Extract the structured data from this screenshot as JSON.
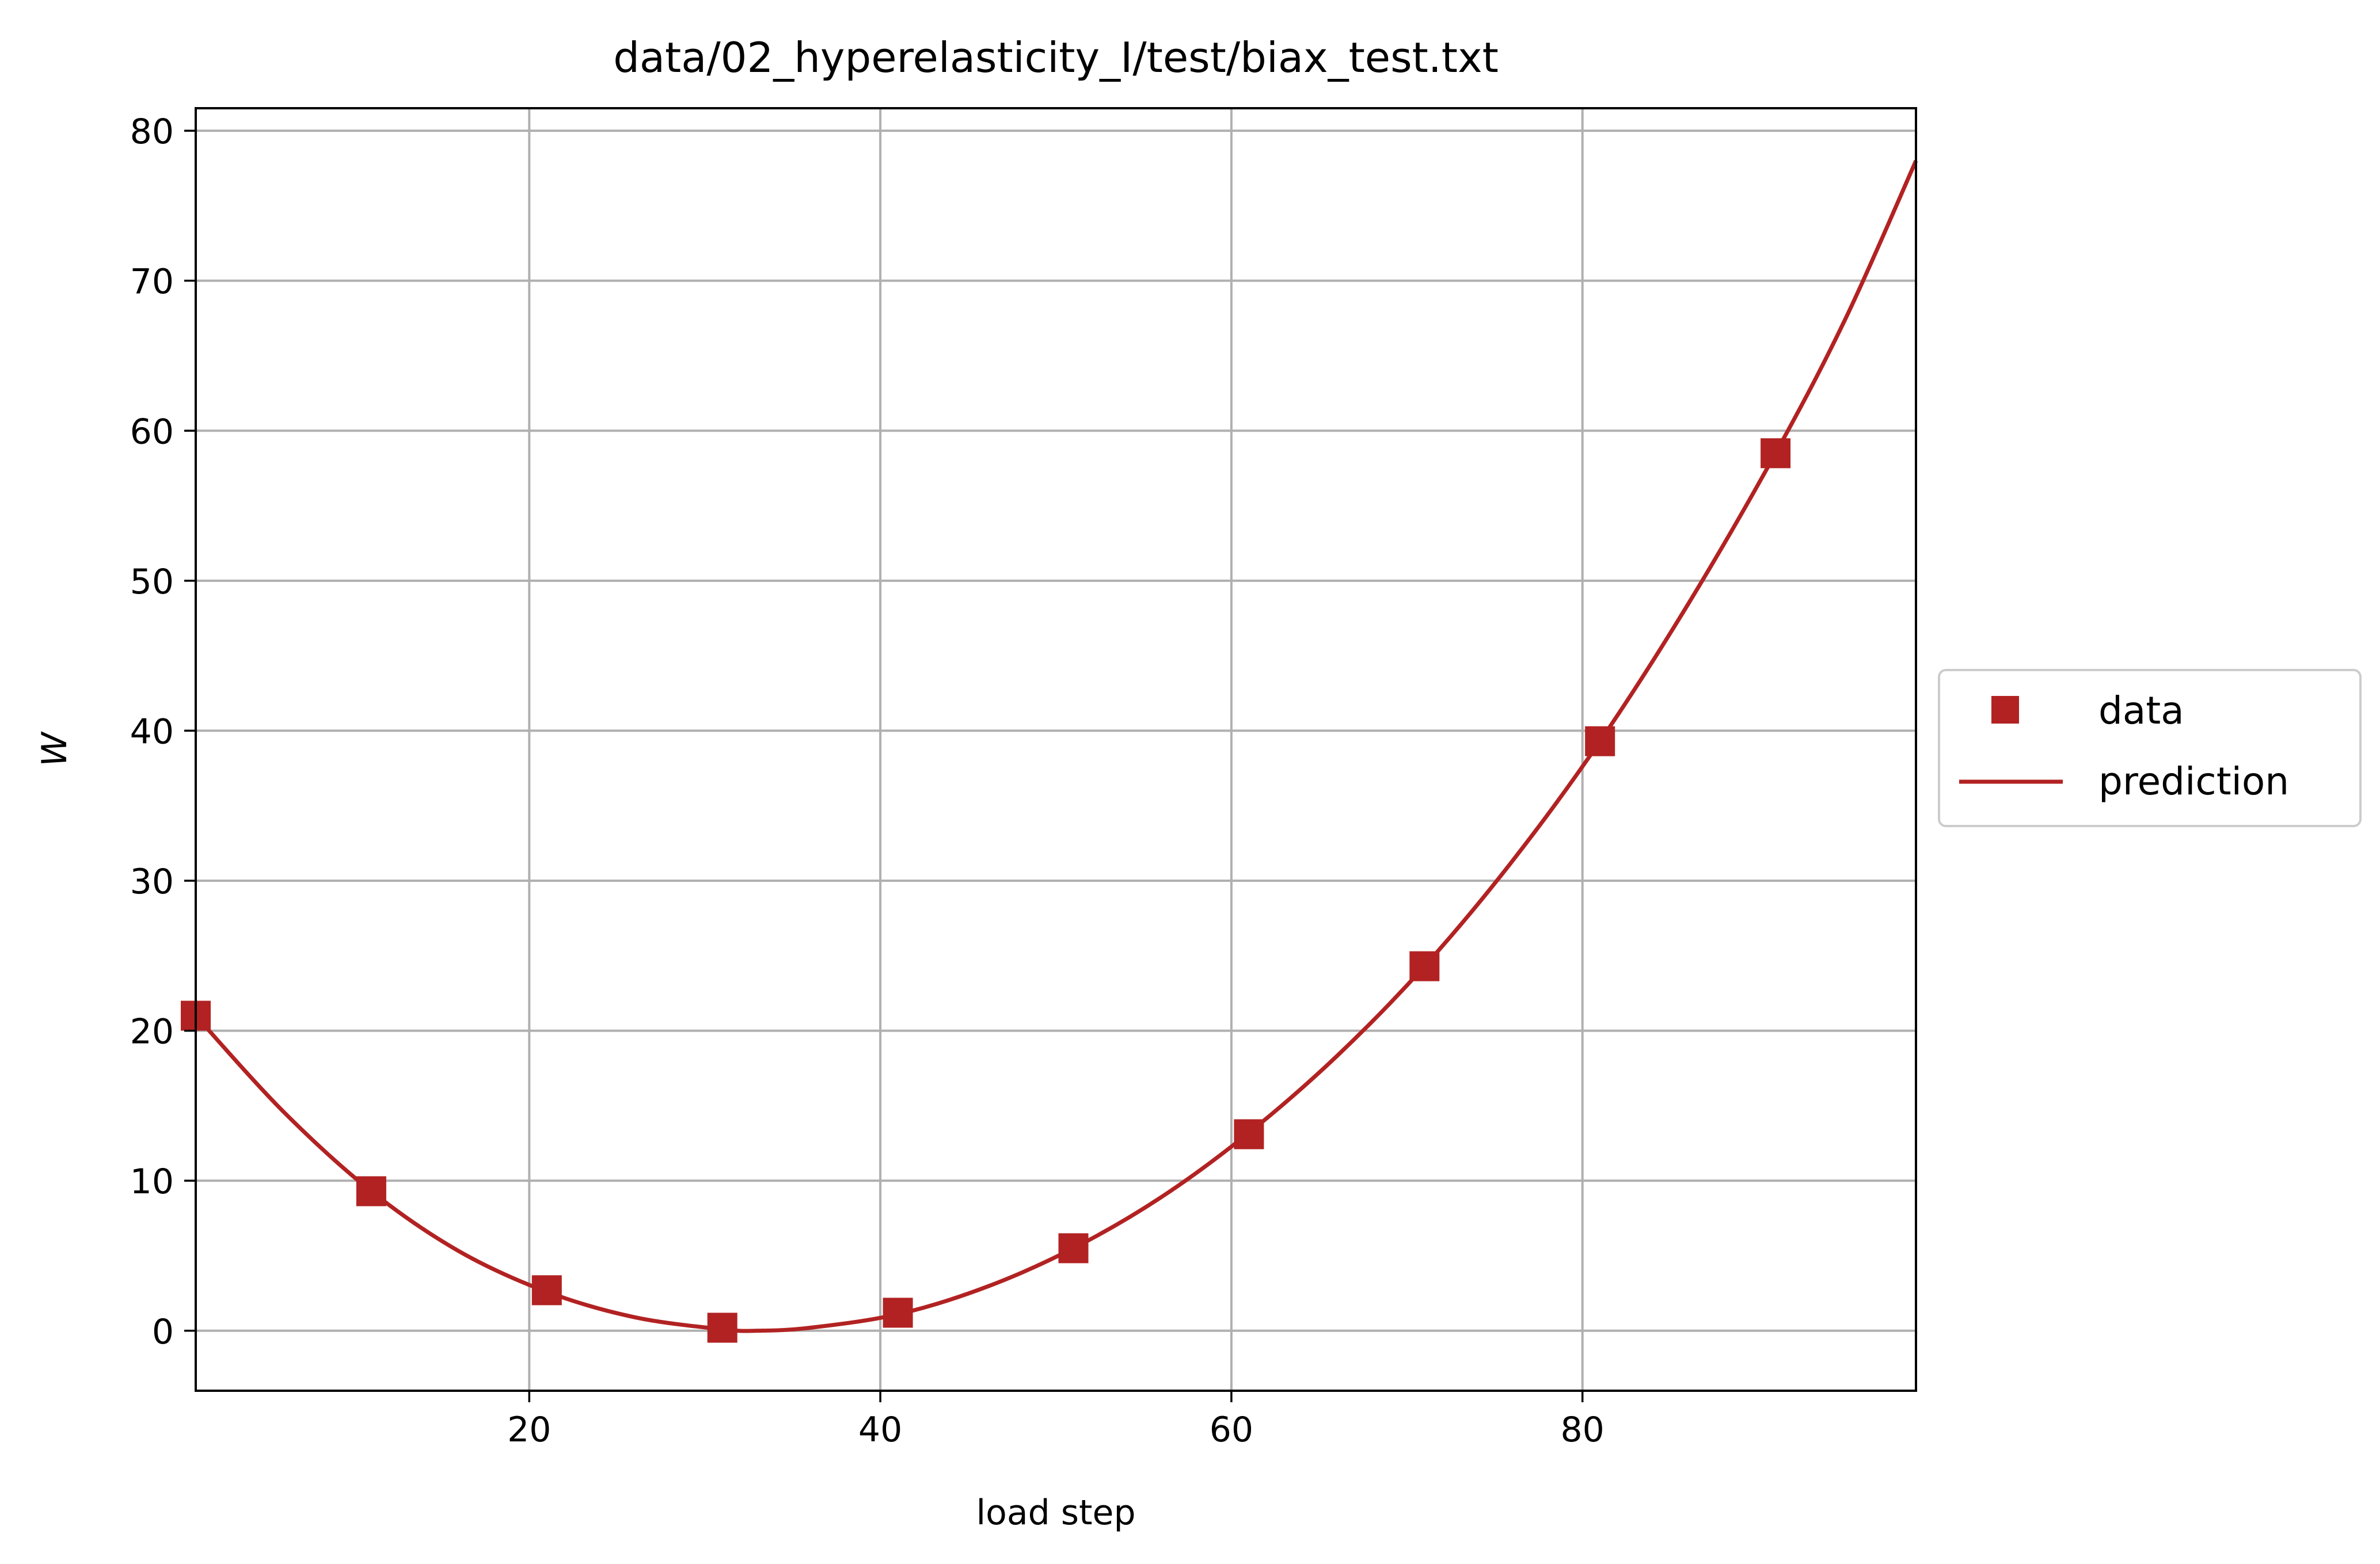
{
  "chart_data": {
    "type": "line",
    "title": "data/02_hyperelasticity_I/test/biax_test.txt",
    "xlabel": "load step",
    "ylabel": "W",
    "xlim": [
      1,
      99
    ],
    "ylim": [
      -4,
      81.5
    ],
    "grid": true,
    "legend_position": "center-right-outside",
    "xticks": [
      20,
      40,
      60,
      80
    ],
    "yticks": [
      0,
      10,
      20,
      30,
      40,
      50,
      60,
      70,
      80
    ],
    "color": "#b22222",
    "series": [
      {
        "name": "data",
        "marker": "square",
        "x": [
          1,
          11,
          21,
          31,
          41,
          51,
          61,
          71,
          81,
          91
        ],
        "y": [
          21.0,
          9.3,
          2.7,
          0.2,
          1.2,
          5.5,
          13.1,
          24.3,
          39.3,
          58.5
        ]
      },
      {
        "name": "prediction",
        "style": "line",
        "x": [
          1,
          6,
          11,
          16,
          21,
          26,
          31,
          33,
          36,
          41,
          46,
          51,
          56,
          61,
          66,
          71,
          76,
          81,
          86,
          91,
          95,
          99
        ],
        "y": [
          21.0,
          14.6,
          9.3,
          5.3,
          2.6,
          0.9,
          0.1,
          0.0,
          0.2,
          1.1,
          2.9,
          5.5,
          8.9,
          13.2,
          18.3,
          24.3,
          31.3,
          39.3,
          48.4,
          58.5,
          67.5,
          78.0
        ]
      }
    ]
  }
}
